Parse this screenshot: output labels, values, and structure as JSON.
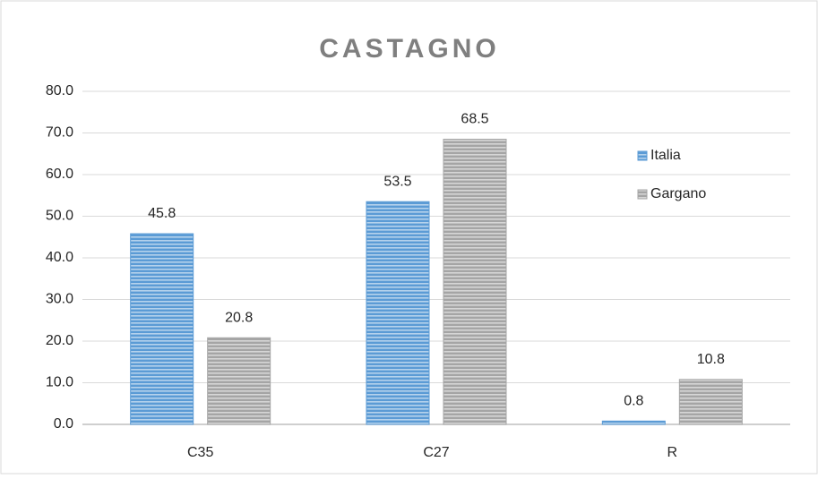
{
  "chart_data": {
    "type": "bar",
    "title": "CASTAGNO",
    "categories": [
      "C35",
      "C27",
      "R"
    ],
    "series": [
      {
        "name": "Italia",
        "color": "#5b9bd5",
        "values": [
          45.8,
          53.5,
          0.8
        ]
      },
      {
        "name": "Gargano",
        "color": "#a5a5a5",
        "values": [
          20.8,
          68.5,
          10.8
        ]
      }
    ],
    "ylim": [
      0,
      80
    ],
    "yticks": [
      {
        "value": 0,
        "label": "0.0"
      },
      {
        "value": 10,
        "label": "10.0"
      },
      {
        "value": 20,
        "label": "20.0"
      },
      {
        "value": 30,
        "label": "30.0"
      },
      {
        "value": 40,
        "label": "40.0"
      },
      {
        "value": 50,
        "label": "50.0"
      },
      {
        "value": 60,
        "label": "60.0"
      },
      {
        "value": 70,
        "label": "70.0"
      },
      {
        "value": 80,
        "label": "80.0"
      }
    ],
    "grid": true,
    "legend": "right"
  }
}
